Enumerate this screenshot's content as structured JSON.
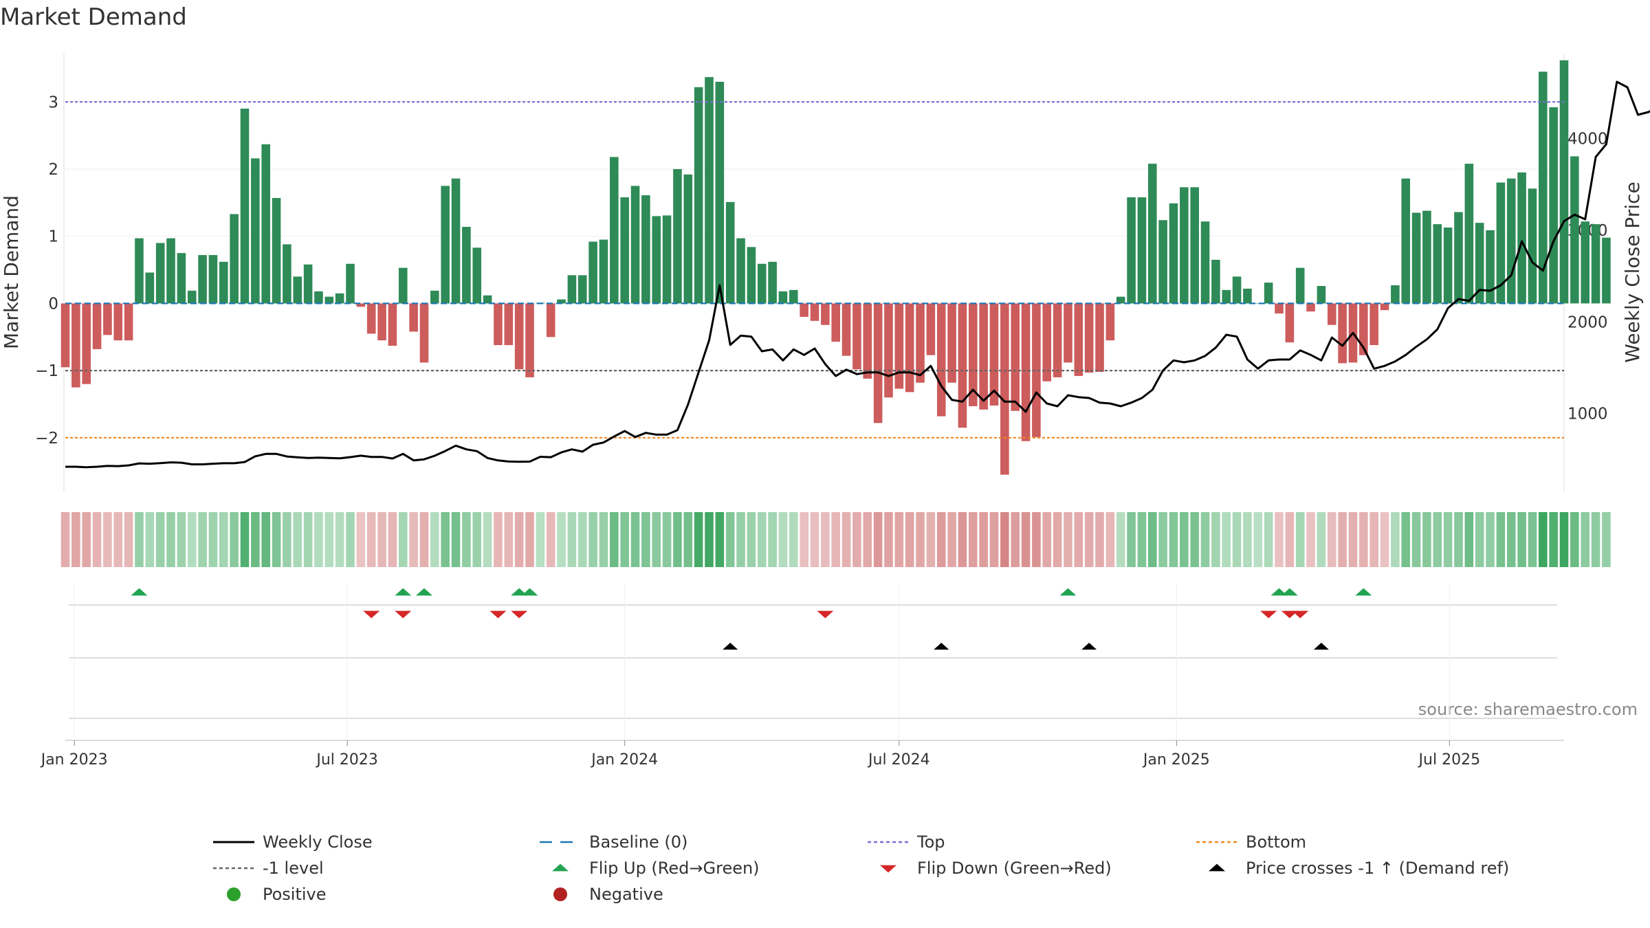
{
  "chart_data": {
    "type": "bar",
    "title": "Market Demand",
    "ylabel_left": "Market Demand",
    "ylabel_right": "Weekly Close Price",
    "source": "source: sharemaestro.com",
    "x_start": "2022-12-26",
    "x_end": "2025-09-15",
    "y_left_range": [
      -2.8,
      3.75
    ],
    "y_left_ticks": [
      3,
      2,
      1,
      0,
      -1,
      -2
    ],
    "y_left_tick_labels": [
      "3",
      "2",
      "1",
      "0",
      "−1",
      "−2"
    ],
    "y_right_range": [
      150,
      4950
    ],
    "y_right_ticks": [
      1000,
      2000,
      3000,
      4000
    ],
    "y_right_tick_labels": [
      "1000",
      "2000",
      "3000",
      "4000"
    ],
    "x_ticks": [
      {
        "date": "2023-01-01",
        "label": "Jan 2023"
      },
      {
        "date": "2023-07-01",
        "label": "Jul 2023"
      },
      {
        "date": "2024-01-01",
        "label": "Jan 2024"
      },
      {
        "date": "2024-07-01",
        "label": "Jul 2024"
      },
      {
        "date": "2025-01-01",
        "label": "Jan 2025"
      },
      {
        "date": "2025-07-01",
        "label": "Jul 2025"
      }
    ],
    "reference_lines": [
      {
        "name": "Top",
        "y": 3,
        "color": "#7b6fd6",
        "dash": "4 3"
      },
      {
        "name": "-1 level",
        "y": -1,
        "color": "#666666",
        "dash": "4 3"
      },
      {
        "name": "Bottom",
        "y": -2,
        "color": "#f08a24",
        "dash": "4 3"
      },
      {
        "name": "Baseline (0)",
        "y": 0,
        "color": "#1f77b4",
        "dash": "9 5"
      }
    ],
    "colors": {
      "positive_bar": "#2e8b57",
      "negative_bar": "#cd5c5c",
      "price_line": "#000000",
      "flip_up": "#22a352",
      "flip_down": "#d62728",
      "price_cross": "#000000",
      "positive_dot": "#2ca02c",
      "negative_dot": "#b22222"
    },
    "first_week": "2022-12-26",
    "week_days": 7,
    "demand": [
      -0.95,
      -1.25,
      -1.2,
      -0.68,
      -0.47,
      -0.55,
      -0.55,
      0.97,
      0.46,
      0.9,
      0.97,
      0.75,
      0.19,
      0.72,
      0.72,
      0.62,
      1.33,
      2.9,
      2.16,
      2.37,
      1.57,
      0.88,
      0.4,
      0.58,
      0.18,
      0.1,
      0.15,
      0.59,
      -0.05,
      -0.45,
      -0.55,
      -0.63,
      0.53,
      -0.42,
      -0.88,
      0.19,
      1.75,
      1.86,
      1.14,
      0.83,
      0.12,
      -0.62,
      -0.62,
      -0.98,
      -1.1,
      0.01,
      -0.5,
      0.06,
      0.42,
      0.42,
      0.92,
      0.95,
      2.18,
      1.58,
      1.75,
      1.61,
      1.3,
      1.31,
      2.0,
      1.92,
      3.22,
      3.37,
      3.3,
      1.51,
      0.97,
      0.84,
      0.59,
      0.62,
      0.18,
      0.2,
      -0.2,
      -0.26,
      -0.32,
      -0.57,
      -0.78,
      -0.98,
      -1.12,
      -1.78,
      -1.4,
      -1.27,
      -1.32,
      -1.18,
      -0.77,
      -1.68,
      -1.18,
      -1.85,
      -1.53,
      -1.58,
      -1.52,
      -2.55,
      -1.6,
      -2.05,
      -1.99,
      -1.16,
      -1.1,
      -0.88,
      -1.08,
      -1.03,
      -1.02,
      -0.55,
      0.1,
      1.58,
      1.58,
      2.08,
      1.24,
      1.49,
      1.73,
      1.73,
      1.22,
      0.65,
      0.2,
      0.4,
      0.22,
      0.0,
      0.31,
      -0.15,
      -0.58,
      0.53,
      -0.12,
      0.26,
      -0.32,
      -0.89,
      -0.88,
      -0.77,
      -0.62,
      -0.1,
      0.27,
      1.86,
      1.35,
      1.38,
      1.18,
      1.13,
      1.36,
      2.08,
      1.2,
      1.09,
      1.8,
      1.86,
      1.95,
      1.71,
      3.45,
      2.92,
      3.62,
      2.19,
      1.22,
      1.18,
      0.98
    ],
    "price": [
      420,
      420,
      415,
      420,
      430,
      427,
      435,
      457,
      453,
      459,
      468,
      464,
      446,
      446,
      453,
      458,
      458,
      472,
      534,
      560,
      560,
      532,
      523,
      515,
      520,
      515,
      512,
      525,
      541,
      527,
      527,
      510,
      560,
      490,
      501,
      540,
      592,
      650,
      610,
      590,
      515,
      489,
      477,
      475,
      476,
      529,
      524,
      577,
      610,
      585,
      660,
      685,
      750,
      810,
      745,
      790,
      770,
      770,
      820,
      1100,
      1450,
      1800,
      2400,
      1750,
      1850,
      1840,
      1680,
      1700,
      1580,
      1700,
      1640,
      1710,
      1540,
      1410,
      1480,
      1430,
      1450,
      1450,
      1410,
      1450,
      1450,
      1420,
      1520,
      1300,
      1150,
      1130,
      1260,
      1140,
      1250,
      1130,
      1130,
      1020,
      1230,
      1110,
      1080,
      1200,
      1180,
      1170,
      1120,
      1110,
      1080,
      1120,
      1170,
      1260,
      1470,
      1580,
      1560,
      1580,
      1630,
      1720,
      1860,
      1840,
      1590,
      1490,
      1580,
      1590,
      1590,
      1690,
      1640,
      1580,
      1830,
      1740,
      1880,
      1720,
      1490,
      1520,
      1570,
      1640,
      1730,
      1810,
      1920,
      2150,
      2250,
      2230,
      2350,
      2340,
      2400,
      2510,
      2880,
      2650,
      2560,
      2880,
      3100,
      3170,
      3120,
      3800,
      3940,
      4620,
      4560,
      4260,
      4290,
      4350
    ],
    "flip_up": [
      "2023-02-13",
      "2023-08-07",
      "2023-08-21",
      "2023-10-23",
      "2023-10-30",
      "2024-10-21",
      "2025-03-10",
      "2025-03-17",
      "2025-05-05"
    ],
    "flip_down": [
      "2023-07-17",
      "2023-08-07",
      "2023-10-09",
      "2023-10-23",
      "2024-05-13",
      "2025-03-03",
      "2025-03-17",
      "2025-03-24"
    ],
    "price_cross": [
      "2024-03-11",
      "2024-07-29",
      "2024-11-04",
      "2025-04-07"
    ],
    "legend": [
      {
        "label": "Weekly Close",
        "marker": "line",
        "color": "#000000"
      },
      {
        "label": "Baseline (0)",
        "marker": "dash",
        "color": "#1f77b4"
      },
      {
        "label": "Top",
        "marker": "dot-line",
        "color": "#7b6fd6"
      },
      {
        "label": "Bottom",
        "marker": "dot-line",
        "color": "#f08a24"
      },
      {
        "label": "-1 level",
        "marker": "dot-line",
        "color": "#666666"
      },
      {
        "label": "Flip Up (Red→Green)",
        "marker": "tri-up",
        "color": "#22a352"
      },
      {
        "label": "Flip Down (Green→Red)",
        "marker": "tri-down",
        "color": "#d62728"
      },
      {
        "label": "Price crosses -1 ↑ (Demand ref)",
        "marker": "tri-up",
        "color": "#000000"
      },
      {
        "label": "Positive",
        "marker": "circle",
        "color": "#2ca02c"
      },
      {
        "label": "Negative",
        "marker": "circle",
        "color": "#b22222"
      }
    ]
  }
}
